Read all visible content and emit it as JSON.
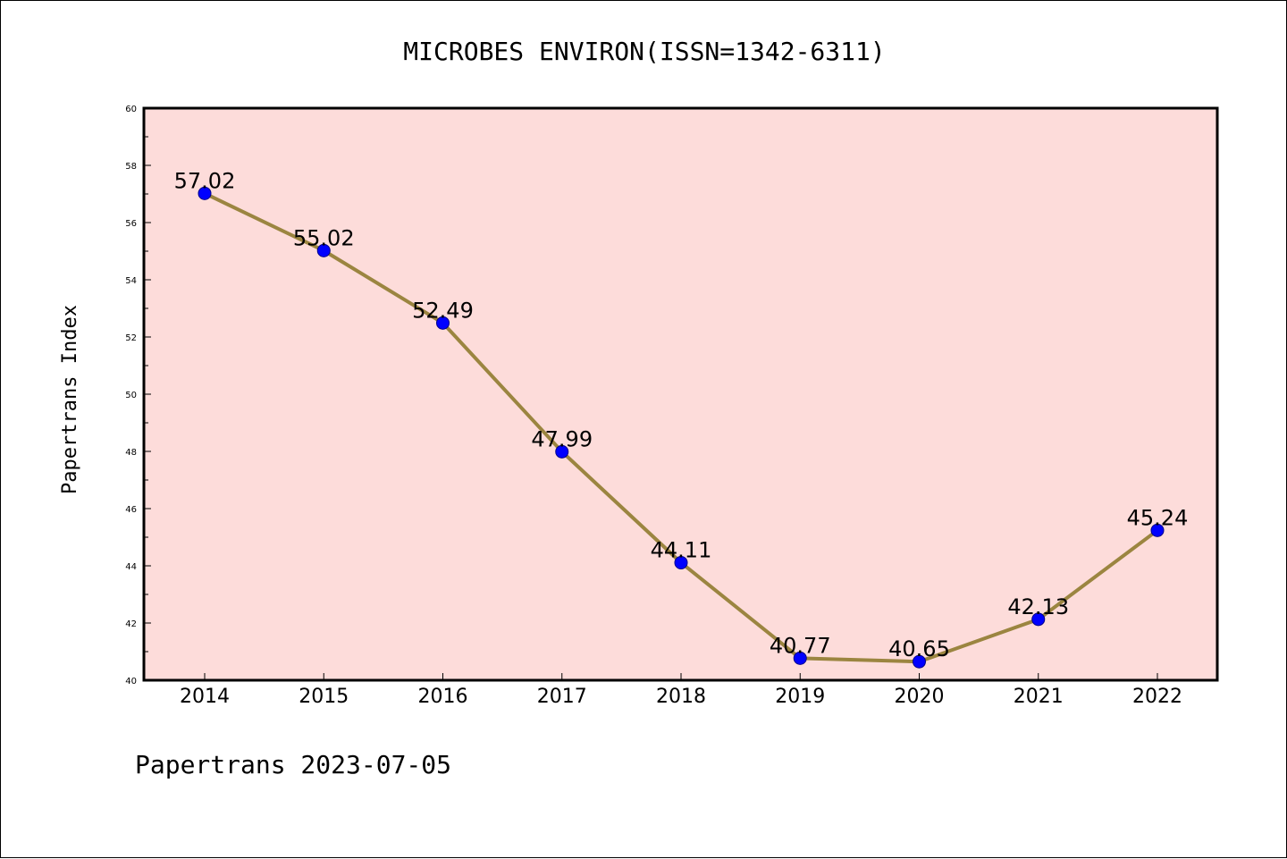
{
  "chart_data": {
    "type": "line",
    "title": "MICROBES ENVIRON(ISSN=1342-6311)",
    "xlabel": "",
    "ylabel": "Papertrans Index",
    "x": [
      "2014",
      "2015",
      "2016",
      "2017",
      "2018",
      "2019",
      "2020",
      "2021",
      "2022"
    ],
    "values": [
      57.02,
      55.02,
      52.49,
      47.99,
      44.11,
      40.77,
      40.65,
      42.13,
      45.24
    ],
    "data_labels": [
      "57.02",
      "55.02",
      "52.49",
      "47.99",
      "44.11",
      "40.77",
      "40.65",
      "42.13",
      "45.24"
    ],
    "ylim": [
      40,
      60
    ],
    "y_ticks": [
      "40",
      "42",
      "44",
      "46",
      "48",
      "50",
      "52",
      "54",
      "56",
      "58",
      "60"
    ],
    "grid": false,
    "legend": "none",
    "colors": {
      "plot_background": "#fddcda",
      "line": "#9b8540",
      "marker": "#0000ff"
    }
  },
  "footer": "Papertrans 2023-07-05"
}
